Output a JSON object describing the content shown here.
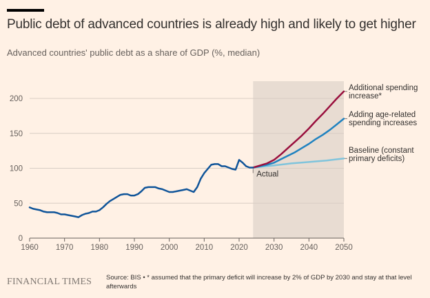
{
  "header": {
    "title": "Public debt of advanced countries is already high and likely to get higher",
    "subtitle": "Advanced countries' public debt as a share of GDP (%, median)"
  },
  "footer": {
    "logo": "FINANCIAL TIMES",
    "note": "Source: BIS • * assumed that the primary deficit will increase by 2% of GDP by 2030 and stay at that level afterwards"
  },
  "colors": {
    "background": "#fff1e5",
    "actual": "#0f5499",
    "additional": "#990f3d",
    "age_related": "#0d7680",
    "age_related_line": "#1f82c0",
    "baseline": "#7fc4dc",
    "shade": "#e8dcd2",
    "grid": "#d8cdc4"
  },
  "chart_data": {
    "type": "line",
    "title": "Public debt of advanced countries is already high and likely to get higher",
    "subtitle": "Advanced countries' public debt as a share of GDP (%, median)",
    "xlabel": "",
    "ylabel": "",
    "xlim": [
      1960,
      2050
    ],
    "ylim": [
      0,
      220
    ],
    "x_ticks": [
      1960,
      1970,
      1980,
      1990,
      2000,
      2010,
      2020,
      2030,
      2040,
      2050
    ],
    "y_ticks": [
      0,
      50,
      100,
      150,
      200
    ],
    "grid": "horizontal",
    "shaded_region": {
      "from": 2024,
      "to": 2050,
      "meaning": "projection"
    },
    "series": [
      {
        "name": "Actual",
        "label": "Actual",
        "color": "#0f5499",
        "x": [
          1960,
          1961,
          1962,
          1963,
          1964,
          1965,
          1966,
          1967,
          1968,
          1969,
          1970,
          1971,
          1972,
          1973,
          1974,
          1975,
          1976,
          1977,
          1978,
          1979,
          1980,
          1981,
          1982,
          1983,
          1984,
          1985,
          1986,
          1987,
          1988,
          1989,
          1990,
          1991,
          1992,
          1993,
          1994,
          1995,
          1996,
          1997,
          1998,
          1999,
          2000,
          2001,
          2002,
          2003,
          2004,
          2005,
          2006,
          2007,
          2008,
          2009,
          2010,
          2011,
          2012,
          2013,
          2014,
          2015,
          2016,
          2017,
          2018,
          2019,
          2020,
          2021,
          2022,
          2023,
          2024
        ],
        "y": [
          44,
          42,
          41,
          40,
          38,
          37,
          37,
          37,
          36,
          34,
          34,
          33,
          32,
          31,
          30,
          33,
          35,
          36,
          38,
          38,
          40,
          44,
          49,
          53,
          56,
          59,
          62,
          63,
          63,
          61,
          61,
          63,
          67,
          72,
          73,
          73,
          73,
          71,
          70,
          68,
          66,
          66,
          67,
          68,
          69,
          70,
          68,
          66,
          73,
          85,
          93,
          99,
          105,
          106,
          106,
          103,
          103,
          101,
          99,
          98,
          112,
          108,
          103,
          101,
          101
        ]
      },
      {
        "name": "Additional spending increase*",
        "label": "Additional spending increase*",
        "color": "#990f3d",
        "x": [
          2024,
          2026,
          2028,
          2030,
          2032,
          2034,
          2036,
          2038,
          2040,
          2042,
          2044,
          2046,
          2048,
          2050
        ],
        "y": [
          101,
          104,
          107,
          112,
          120,
          129,
          138,
          147,
          157,
          168,
          178,
          189,
          200,
          210
        ]
      },
      {
        "name": "Adding age-related spending increases",
        "label": "Adding age-related spending increases",
        "color": "#1f82c0",
        "x": [
          2024,
          2026,
          2028,
          2030,
          2032,
          2034,
          2036,
          2038,
          2040,
          2042,
          2044,
          2046,
          2048,
          2050
        ],
        "y": [
          101,
          103,
          105,
          108,
          113,
          118,
          123,
          129,
          135,
          142,
          148,
          155,
          163,
          171
        ]
      },
      {
        "name": "Baseline (constant primary deficits)",
        "label": "Baseline (constant primary deficits)",
        "color": "#7fc4dc",
        "x": [
          2024,
          2030,
          2035,
          2040,
          2045,
          2050
        ],
        "y": [
          101,
          104,
          107,
          109,
          111,
          114
        ]
      }
    ],
    "annotations": [
      {
        "text": "Actual",
        "x": 2024,
        "y": 101
      },
      {
        "text": "Additional spending increase*",
        "series": "Additional spending increase*"
      },
      {
        "text": "Adding age-related spending increases",
        "series": "Adding age-related spending increases"
      },
      {
        "text": "Baseline (constant primary deficits)",
        "series": "Baseline (constant primary deficits)"
      }
    ]
  }
}
